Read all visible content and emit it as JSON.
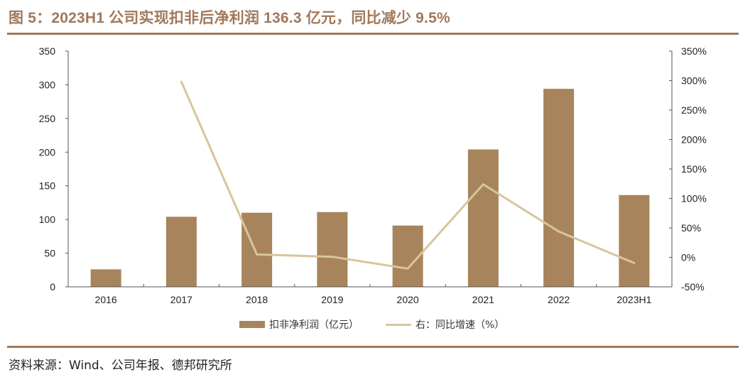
{
  "figure": {
    "title": "图 5：2023H1 公司实现扣非后净利润 136.3 亿元，同比减少 9.5%",
    "source": "资料来源：Wind、公司年报、德邦研究所"
  },
  "colors": {
    "accent": "#A0785A",
    "bar": "#A8845C",
    "line": "#D8C59C",
    "axis": "#555555"
  },
  "chart_data": {
    "type": "bar",
    "title": "图 5：2023H1 公司实现扣非后净利润 136.3 亿元，同比减少 9.5%",
    "categories": [
      "2016",
      "2017",
      "2018",
      "2019",
      "2020",
      "2021",
      "2022",
      "2023H1"
    ],
    "series": [
      {
        "name": "扣非净利润（亿元）",
        "type": "bar",
        "axis": "left",
        "values": [
          26,
          104,
          110,
          111,
          91,
          204,
          294,
          136.3
        ]
      },
      {
        "name": "右：同比增速（%）",
        "type": "line",
        "axis": "right",
        "values": [
          null,
          298,
          5,
          1,
          -19,
          124,
          44,
          -9.5
        ]
      }
    ],
    "left_axis": {
      "ylim": [
        0,
        350
      ],
      "ticks": [
        0,
        50,
        100,
        150,
        200,
        250,
        300,
        350
      ],
      "tick_labels": [
        "0",
        "50",
        "100",
        "150",
        "200",
        "250",
        "300",
        "350"
      ]
    },
    "right_axis": {
      "ylim": [
        -50,
        350
      ],
      "ticks": [
        -50,
        0,
        50,
        100,
        150,
        200,
        250,
        300,
        350
      ],
      "tick_labels": [
        "-50%",
        "0%",
        "50%",
        "100%",
        "150%",
        "200%",
        "250%",
        "300%",
        "350%"
      ]
    },
    "xlabel": "",
    "ylabel": "",
    "grid": false,
    "legend_position": "bottom-center"
  }
}
